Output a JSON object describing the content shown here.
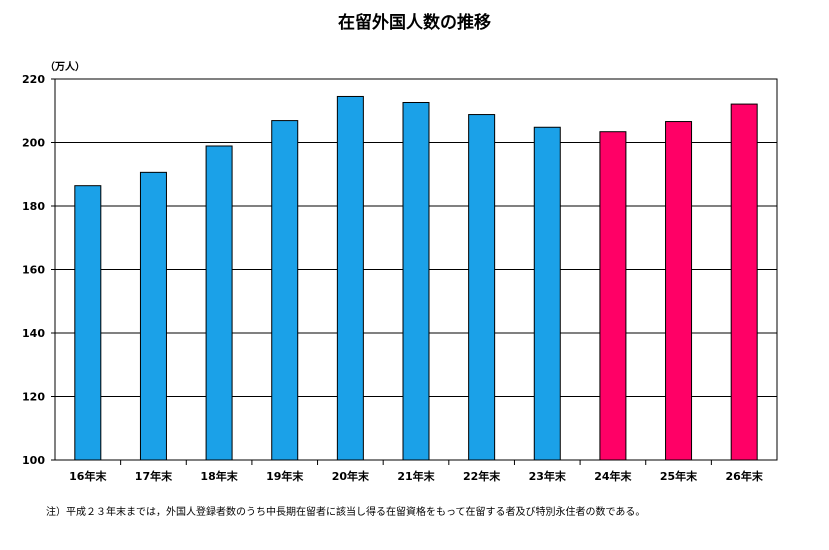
{
  "chart_data": {
    "type": "bar",
    "title": "在留外国人数の推移",
    "unit_label": "（万人）",
    "categories": [
      "16年末",
      "17年末",
      "18年末",
      "19年末",
      "20年末",
      "21年末",
      "22年末",
      "23年末",
      "24年末",
      "25年末",
      "26年末"
    ],
    "values": [
      186.4,
      190.6,
      198.9,
      206.9,
      214.5,
      212.6,
      208.8,
      204.8,
      203.4,
      206.6,
      212.1
    ],
    "bar_colors": [
      "#1ba1e8",
      "#1ba1e8",
      "#1ba1e8",
      "#1ba1e8",
      "#1ba1e8",
      "#1ba1e8",
      "#1ba1e8",
      "#1ba1e8",
      "#ff0066",
      "#ff0066",
      "#ff0066"
    ],
    "ylim": [
      100,
      220
    ],
    "yticks": [
      100,
      120,
      140,
      160,
      180,
      200,
      220
    ],
    "grid": true,
    "xlabel": "",
    "ylabel": ""
  },
  "footnote": "注）平成２３年末までは，外国人登録者数のうち中長期在留者に該当し得る在留資格をもって在留する者及び特別永住者の数である。"
}
